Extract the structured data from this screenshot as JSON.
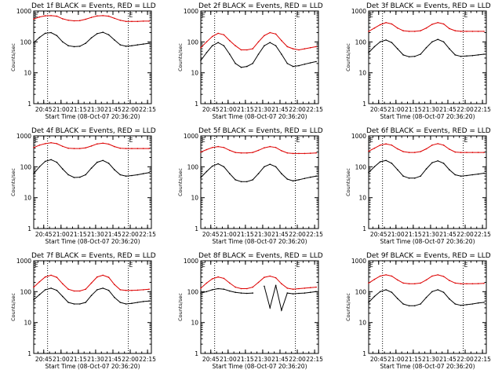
{
  "figure": {
    "start_time_label": "Start Time (08-Oct-07 20:36:20)",
    "ylabel": "Counts/sec",
    "yticks": [
      "1",
      "10",
      "100",
      "1000"
    ],
    "xticks": [
      "20:45",
      "21:00",
      "21:15",
      "21:30",
      "21:45",
      "22:00",
      "22:15"
    ],
    "colors": {
      "events": "#000000",
      "lld": "#dd0000",
      "axes": "#000000"
    },
    "marker_label": "E"
  },
  "chart_data": [
    {
      "type": "line",
      "title": "Det 1f BLACK = Events, RED = LLD",
      "xlabel": "Start Time (08-Oct-07 20:36:20)",
      "ylabel": "Counts/sec",
      "x_unit": "minutes after 20:36:20",
      "xlim": [
        0,
        102
      ],
      "ylim": [
        1,
        1000
      ],
      "yscale": "log",
      "x": [
        0,
        5,
        10,
        15,
        20,
        25,
        30,
        35,
        40,
        45,
        50,
        55,
        60,
        65,
        70,
        75,
        80,
        85,
        90,
        95,
        100
      ],
      "series": [
        {
          "name": "BLACK = Events",
          "values": [
            95,
            140,
            190,
            200,
            160,
            100,
            75,
            70,
            72,
            90,
            135,
            185,
            205,
            170,
            115,
            80,
            72,
            75,
            80,
            85,
            90
          ]
        },
        {
          "name": "RED = LLD",
          "values": [
            550,
            640,
            700,
            710,
            680,
            560,
            500,
            480,
            490,
            540,
            620,
            690,
            710,
            680,
            580,
            500,
            460,
            460,
            460,
            470,
            470
          ]
        }
      ],
      "dotted_lines_x": [
        12,
        82
      ],
      "marker_x": 82,
      "grid": false
    },
    {
      "type": "line",
      "title": "Det 2f BLACK = Events, RED = LLD",
      "xlabel": "Start Time (08-Oct-07 20:36:20)",
      "ylabel": "Counts/sec",
      "x_unit": "minutes after 20:36:20",
      "xlim": [
        0,
        102
      ],
      "ylim": [
        1,
        1000
      ],
      "yscale": "log",
      "x": [
        0,
        5,
        10,
        15,
        20,
        25,
        30,
        35,
        40,
        45,
        50,
        55,
        60,
        65,
        70,
        75,
        80,
        85,
        90,
        95,
        100
      ],
      "series": [
        {
          "name": "BLACK = Events",
          "values": [
            25,
            45,
            75,
            95,
            75,
            40,
            20,
            15,
            16,
            20,
            40,
            75,
            95,
            75,
            40,
            20,
            16,
            17,
            19,
            21,
            23
          ]
        },
        {
          "name": "RED = LLD",
          "values": [
            65,
            100,
            150,
            190,
            170,
            110,
            75,
            55,
            55,
            60,
            100,
            160,
            200,
            180,
            110,
            70,
            60,
            55,
            60,
            65,
            70
          ]
        }
      ],
      "dotted_lines_x": [
        12,
        82
      ],
      "marker_x": 82,
      "grid": false
    },
    {
      "type": "line",
      "title": "Det 3f BLACK = Events, RED = LLD",
      "xlabel": "Start Time (08-Oct-07 20:36:20)",
      "ylabel": "Counts/sec",
      "x_unit": "minutes after 20:36:20",
      "xlim": [
        0,
        102
      ],
      "ylim": [
        1,
        1000
      ],
      "yscale": "log",
      "x": [
        0,
        5,
        10,
        15,
        20,
        25,
        30,
        35,
        40,
        45,
        50,
        55,
        60,
        65,
        70,
        75,
        80,
        85,
        90,
        95,
        100
      ],
      "series": [
        {
          "name": "BLACK = Events",
          "values": [
            45,
            70,
            100,
            115,
            95,
            60,
            38,
            33,
            34,
            40,
            65,
            100,
            120,
            100,
            60,
            38,
            34,
            35,
            36,
            38,
            40
          ]
        },
        {
          "name": "RED = LLD",
          "values": [
            220,
            280,
            360,
            420,
            380,
            280,
            230,
            220,
            220,
            230,
            280,
            370,
            420,
            380,
            270,
            230,
            220,
            220,
            220,
            220,
            220
          ]
        }
      ],
      "dotted_lines_x": [
        12,
        82
      ],
      "marker_x": 82,
      "grid": false
    },
    {
      "type": "line",
      "title": "Det 4f BLACK = Events, RED = LLD",
      "xlabel": "Start Time (08-Oct-07 20:36:20)",
      "ylabel": "Counts/sec",
      "x_unit": "minutes after 20:36:20",
      "xlim": [
        0,
        102
      ],
      "ylim": [
        1,
        1000
      ],
      "yscale": "log",
      "x": [
        0,
        5,
        10,
        15,
        20,
        25,
        30,
        35,
        40,
        45,
        50,
        55,
        60,
        65,
        70,
        75,
        80,
        85,
        90,
        95,
        100
      ],
      "series": [
        {
          "name": "BLACK = Events",
          "values": [
            60,
            100,
            150,
            170,
            140,
            85,
            55,
            45,
            46,
            55,
            90,
            140,
            160,
            130,
            80,
            55,
            50,
            52,
            55,
            60,
            65
          ]
        },
        {
          "name": "RED = LLD",
          "values": [
            420,
            500,
            560,
            600,
            560,
            460,
            400,
            390,
            390,
            410,
            470,
            550,
            580,
            540,
            450,
            400,
            390,
            390,
            390,
            390,
            390
          ]
        }
      ],
      "dotted_lines_x": [
        12,
        82
      ],
      "marker_x": 82,
      "grid": false
    },
    {
      "type": "line",
      "title": "Det 5f BLACK = Events, RED = LLD",
      "xlabel": "Start Time (08-Oct-07 20:36:20)",
      "ylabel": "Counts/sec",
      "x_unit": "minutes after 20:36:20",
      "xlim": [
        0,
        102
      ],
      "ylim": [
        1,
        1000
      ],
      "yscale": "log",
      "x": [
        0,
        5,
        10,
        15,
        20,
        25,
        30,
        35,
        40,
        45,
        50,
        55,
        60,
        65,
        70,
        75,
        80,
        85,
        90,
        95,
        100
      ],
      "series": [
        {
          "name": "BLACK = Events",
          "values": [
            45,
            70,
            105,
            125,
            100,
            60,
            38,
            33,
            33,
            38,
            60,
            100,
            120,
            100,
            60,
            40,
            35,
            38,
            42,
            46,
            50
          ]
        },
        {
          "name": "RED = LLD",
          "values": [
            300,
            360,
            420,
            450,
            420,
            340,
            290,
            280,
            280,
            290,
            340,
            410,
            450,
            420,
            330,
            280,
            270,
            270,
            270,
            275,
            280
          ]
        }
      ],
      "dotted_lines_x": [
        12,
        82
      ],
      "marker_x": 82,
      "grid": false
    },
    {
      "type": "line",
      "title": "Det 6f BLACK = Events, RED = LLD",
      "xlabel": "Start Time (08-Oct-07 20:36:20)",
      "ylabel": "Counts/sec",
      "x_unit": "minutes after 20:36:20",
      "xlim": [
        0,
        102
      ],
      "ylim": [
        1,
        1000
      ],
      "yscale": "log",
      "x": [
        0,
        5,
        10,
        15,
        20,
        25,
        30,
        35,
        40,
        45,
        50,
        55,
        60,
        65,
        70,
        75,
        80,
        85,
        90,
        95,
        100
      ],
      "series": [
        {
          "name": "BLACK = Events",
          "values": [
            65,
            100,
            145,
            160,
            130,
            80,
            50,
            43,
            43,
            50,
            85,
            135,
            155,
            130,
            80,
            55,
            50,
            52,
            55,
            58,
            62
          ]
        },
        {
          "name": "RED = LLD",
          "values": [
            320,
            400,
            500,
            550,
            500,
            380,
            310,
            290,
            290,
            310,
            380,
            500,
            560,
            500,
            370,
            300,
            290,
            290,
            290,
            290,
            290
          ]
        }
      ],
      "dotted_lines_x": [
        12,
        82
      ],
      "marker_x": 82,
      "grid": false
    },
    {
      "type": "line",
      "title": "Det 7f BLACK = Events, RED = LLD",
      "xlabel": "Start Time (08-Oct-07 20:36:20)",
      "ylabel": "Counts/sec",
      "x_unit": "minutes after 20:36:20",
      "xlim": [
        0,
        102
      ],
      "ylim": [
        1,
        1000
      ],
      "yscale": "log",
      "x": [
        0,
        5,
        10,
        15,
        20,
        25,
        30,
        35,
        40,
        45,
        50,
        55,
        60,
        65,
        70,
        75,
        80,
        85,
        90,
        95,
        100
      ],
      "series": [
        {
          "name": "BLACK = Events",
          "values": [
            55,
            80,
            115,
            130,
            110,
            70,
            45,
            40,
            40,
            45,
            75,
            115,
            130,
            110,
            65,
            45,
            40,
            42,
            45,
            48,
            50
          ]
        },
        {
          "name": "RED = LLD",
          "values": [
            140,
            210,
            300,
            340,
            290,
            180,
            120,
            105,
            105,
            120,
            190,
            300,
            340,
            290,
            170,
            115,
            110,
            110,
            112,
            115,
            120
          ]
        }
      ],
      "dotted_lines_x": [
        12,
        82
      ],
      "marker_x": 82,
      "grid": false
    },
    {
      "type": "line",
      "title": "Det 8f BLACK = Events, RED = LLD",
      "xlabel": "Start Time (08-Oct-07 20:36:20)",
      "ylabel": "Counts/sec",
      "x_unit": "minutes after 20:36:20",
      "xlim": [
        0,
        102
      ],
      "ylim": [
        1,
        1000
      ],
      "yscale": "log",
      "x": [
        0,
        5,
        10,
        15,
        20,
        25,
        30,
        35,
        40,
        45,
        50,
        55,
        60,
        65,
        70,
        75,
        80,
        85,
        90,
        95,
        100
      ],
      "series": [
        {
          "name": "BLACK = Events",
          "values": [
            90,
            100,
            115,
            125,
            120,
            105,
            95,
            90,
            88,
            90,
            null,
            150,
            30,
            160,
            25,
            90,
            85,
            88,
            90,
            95,
            100
          ]
        },
        {
          "name": "RED = LLD",
          "values": [
            130,
            190,
            260,
            300,
            270,
            190,
            140,
            125,
            125,
            140,
            200,
            290,
            320,
            280,
            180,
            130,
            120,
            125,
            130,
            135,
            140
          ]
        }
      ],
      "dotted_lines_x": [
        12,
        82
      ],
      "marker_x": 82,
      "grid": false
    },
    {
      "type": "line",
      "title": "Det 9f BLACK = Events, RED = LLD",
      "xlabel": "Start Time (08-Oct-07 20:36:20)",
      "ylabel": "Counts/sec",
      "x_unit": "minutes after 20:36:20",
      "xlim": [
        0,
        102
      ],
      "ylim": [
        1,
        1000
      ],
      "yscale": "log",
      "x": [
        0,
        5,
        10,
        15,
        20,
        25,
        30,
        35,
        40,
        45,
        50,
        55,
        60,
        65,
        70,
        75,
        80,
        85,
        90,
        95,
        100
      ],
      "series": [
        {
          "name": "BLACK = Events",
          "values": [
            45,
            70,
            100,
            115,
            95,
            60,
            40,
            35,
            35,
            40,
            65,
            100,
            115,
            95,
            58,
            40,
            36,
            38,
            40,
            43,
            45
          ]
        },
        {
          "name": "RED = LLD",
          "values": [
            190,
            250,
            320,
            350,
            320,
            240,
            190,
            180,
            180,
            190,
            240,
            320,
            350,
            310,
            230,
            190,
            180,
            180,
            180,
            182,
            185
          ]
        }
      ],
      "dotted_lines_x": [
        12,
        82
      ],
      "marker_x": 82,
      "grid": false
    }
  ]
}
